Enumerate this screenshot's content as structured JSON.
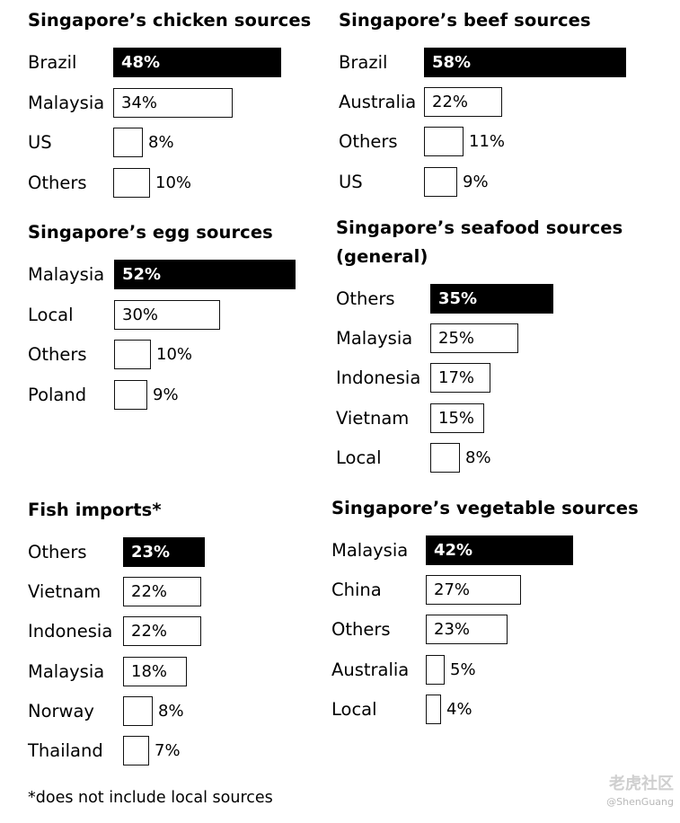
{
  "chart_data": [
    {
      "type": "bar",
      "title": "Singapore’s chicken sources",
      "categories": [
        "Brazil",
        "Malaysia",
        "US",
        "Others"
      ],
      "values": [
        48,
        34,
        8,
        10
      ],
      "labels": [
        "48%",
        "34%",
        "8%",
        "10%"
      ],
      "unit": "%"
    },
    {
      "type": "bar",
      "title": "Singapore’s beef sources",
      "categories": [
        "Brazil",
        "Australia",
        "Others",
        "US"
      ],
      "values": [
        58,
        22,
        11,
        9
      ],
      "labels": [
        "58%",
        "22%",
        "11%",
        "9%"
      ],
      "unit": "%"
    },
    {
      "type": "bar",
      "title": "Singapore’s egg sources",
      "categories": [
        "Malaysia",
        "Local",
        "Others",
        "Poland"
      ],
      "values": [
        52,
        30,
        10,
        9
      ],
      "labels": [
        "52%",
        "30%",
        "10%",
        "9%"
      ],
      "unit": "%"
    },
    {
      "type": "bar",
      "title": "Singapore’s seafood sources (general)",
      "title_lines": [
        "Singapore’s seafood sources",
        "(general)"
      ],
      "categories": [
        "Others",
        "Malaysia",
        "Indonesia",
        "Vietnam",
        "Local"
      ],
      "values": [
        35,
        25,
        17,
        15,
        8
      ],
      "labels": [
        "35%",
        "25%",
        "17%",
        "15%",
        "8%"
      ],
      "unit": "%"
    },
    {
      "type": "bar",
      "title": "Fish imports*",
      "categories": [
        "Others",
        "Vietnam",
        "Indonesia",
        "Malaysia",
        "Norway",
        "Thailand"
      ],
      "values": [
        23,
        22,
        22,
        18,
        8,
        7
      ],
      "labels": [
        "23%",
        "22%",
        "22%",
        "18%",
        "8%",
        "7%"
      ],
      "unit": "%"
    },
    {
      "type": "bar",
      "title": "Singapore’s vegetable sources",
      "categories": [
        "Malaysia",
        "China",
        "Others",
        "Australia",
        "Local"
      ],
      "values": [
        42,
        27,
        23,
        5,
        4
      ],
      "labels": [
        "42%",
        "27%",
        "23%",
        "5%",
        "4%"
      ],
      "unit": "%"
    }
  ],
  "footnote": "*does not include local sources",
  "watermark": {
    "logo": "老虎社区",
    "handle": "@ShenGuang"
  },
  "colors": {
    "top_bar": "#000000",
    "other_bar": "#ffffff",
    "border": "#111111"
  }
}
